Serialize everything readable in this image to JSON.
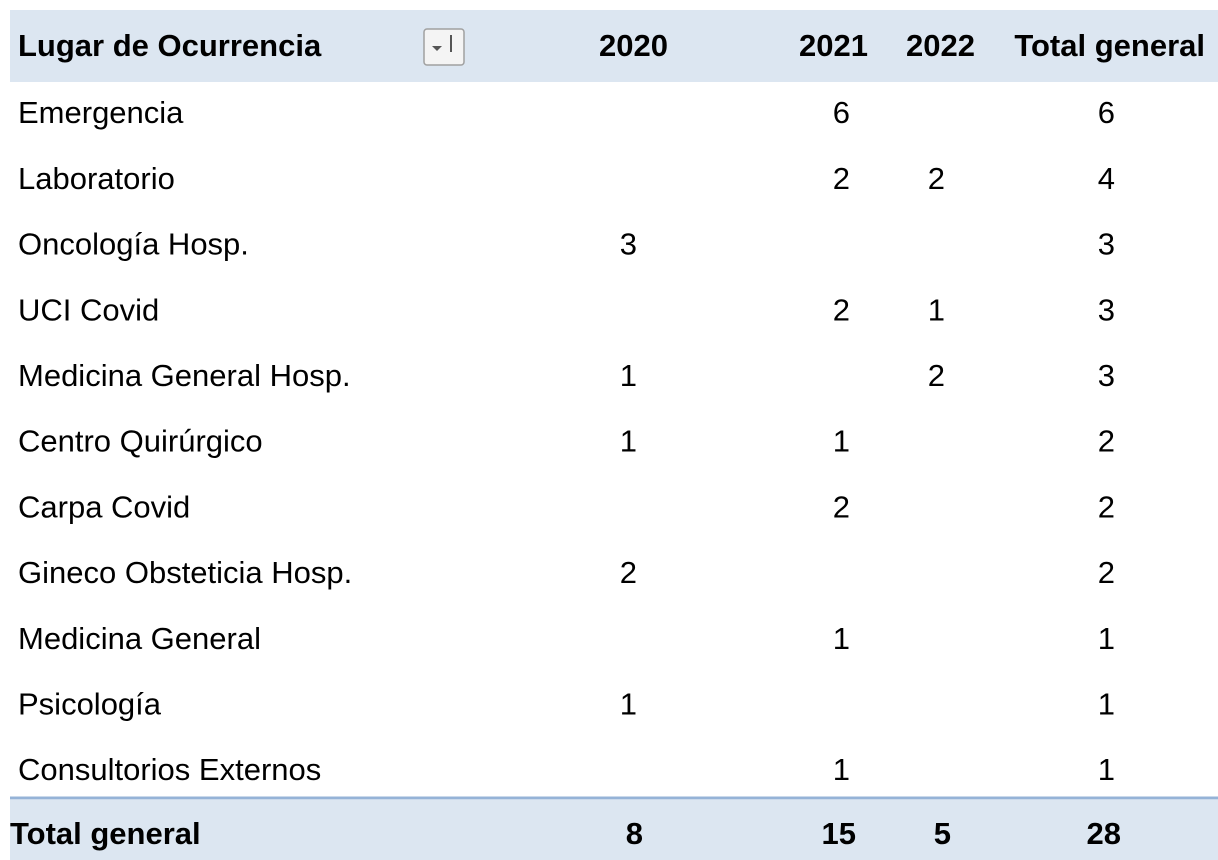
{
  "table": {
    "header": [
      "Lugar de Ocurrencia",
      "2020",
      "2021",
      "2022",
      "Total general"
    ],
    "rows": [
      [
        "Emergencia",
        null,
        6,
        null,
        6
      ],
      [
        "Laboratorio",
        null,
        2,
        2,
        4
      ],
      [
        "Oncología Hosp.",
        3,
        null,
        null,
        3
      ],
      [
        "UCI Covid",
        null,
        2,
        1,
        3
      ],
      [
        "Medicina General Hosp.",
        1,
        null,
        2,
        3
      ],
      [
        "Centro Quirúrgico",
        1,
        1,
        null,
        2
      ],
      [
        "Carpa Covid",
        null,
        2,
        null,
        2
      ],
      [
        "Gineco Obsteticia Hosp.",
        2,
        null,
        null,
        2
      ],
      [
        "Medicina General",
        null,
        1,
        null,
        1
      ],
      [
        "Psicología",
        1,
        null,
        null,
        1
      ],
      [
        "Consultorios Externos",
        null,
        1,
        null,
        1
      ]
    ],
    "total_row": [
      "Total general",
      8,
      15,
      5,
      28
    ]
  }
}
